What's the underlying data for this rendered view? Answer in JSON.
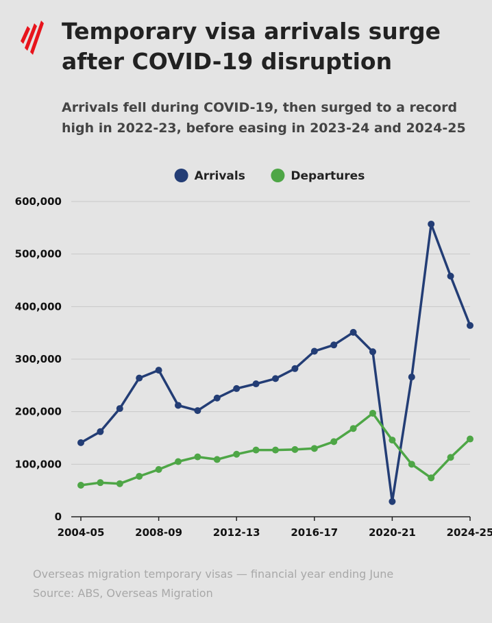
{
  "header": {
    "title": "Temporary visa arrivals surge after COVID-19 disruption",
    "subtitle": "Arrivals fell during COVID-19, then surged to a record high in 2022-23, before easing in 2023-24 and 2024-25"
  },
  "footer": {
    "note": "Overseas migration temporary visas — financial year ending June",
    "source": "Source: ABS, Overseas Migration"
  },
  "colors": {
    "arrivals": "#233d75",
    "departures": "#4ea646",
    "logo": "#e8141c",
    "grid": "#c8c8c8"
  },
  "chart_data": {
    "type": "line",
    "x": [
      "2004-05",
      "2005-06",
      "2006-07",
      "2007-08",
      "2008-09",
      "2009-10",
      "2010-11",
      "2011-12",
      "2012-13",
      "2013-14",
      "2014-15",
      "2015-16",
      "2016-17",
      "2017-18",
      "2018-19",
      "2019-20",
      "2020-21",
      "2021-22",
      "2022-23",
      "2023-24",
      "2024-25"
    ],
    "xtick_labels": [
      "2004-05",
      "2008-09",
      "2012-13",
      "2016-17",
      "2020-21",
      "2024-25"
    ],
    "ylim": [
      0,
      600000
    ],
    "yticks": [
      0,
      100000,
      200000,
      300000,
      400000,
      500000,
      600000
    ],
    "ytick_labels": [
      "0",
      "100,000",
      "200,000",
      "300,000",
      "400,000",
      "500,000",
      "600,000"
    ],
    "grid": true,
    "legend_position": "top-center",
    "series": [
      {
        "name": "Arrivals",
        "color": "#233d75",
        "values": [
          141000,
          162000,
          206000,
          264000,
          279000,
          212000,
          202000,
          226000,
          244000,
          253000,
          263000,
          282000,
          315000,
          327000,
          351000,
          314000,
          29000,
          266000,
          557000,
          458000,
          364000
        ]
      },
      {
        "name": "Departures",
        "color": "#4ea646",
        "values": [
          60000,
          65000,
          63000,
          77000,
          90000,
          105000,
          114000,
          109000,
          119000,
          127000,
          127000,
          128000,
          130000,
          143000,
          168000,
          197000,
          146000,
          100000,
          74000,
          113000,
          148000
        ]
      }
    ]
  }
}
